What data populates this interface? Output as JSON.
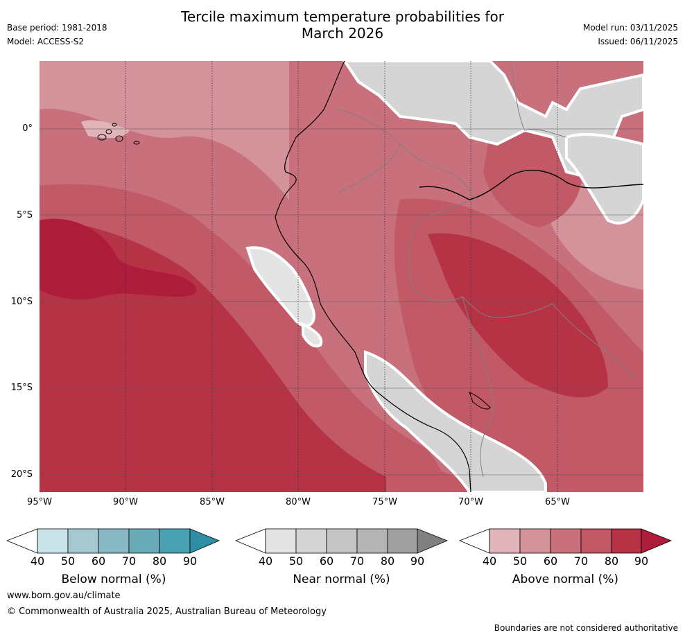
{
  "title": {
    "line1": "Tercile maximum temperature probabilities for",
    "line2": "March 2026"
  },
  "meta": {
    "base_period": "Base period: 1981-2018",
    "model": "Model: ACCESS-S2",
    "model_run": "Model run: 03/11/2025",
    "issued": "Issued: 06/11/2025"
  },
  "map": {
    "lat_labels": [
      "0°",
      "5°S",
      "10°S",
      "15°S",
      "20°S"
    ],
    "lon_labels": [
      "95°W",
      "90°W",
      "85°W",
      "80°W",
      "75°W",
      "70°W",
      "65°W"
    ]
  },
  "legends": [
    {
      "name": "Below normal (%)",
      "ticks": [
        "40",
        "50",
        "60",
        "70",
        "80",
        "90"
      ],
      "colors": [
        "#ffffff",
        "#c9e2e8",
        "#a6c9d1",
        "#88b8c4",
        "#6aabb8",
        "#4aa1b2",
        "#2f8ea4"
      ]
    },
    {
      "name": "Near normal (%)",
      "ticks": [
        "40",
        "50",
        "60",
        "70",
        "80",
        "90"
      ],
      "colors": [
        "#ffffff",
        "#e4e4e4",
        "#d5d5d5",
        "#c5c5c5",
        "#b4b4b4",
        "#a0a0a0",
        "#808080"
      ]
    },
    {
      "name": "Above normal (%)",
      "ticks": [
        "40",
        "50",
        "60",
        "70",
        "80",
        "90"
      ],
      "colors": [
        "#ffffff",
        "#e0b4b9",
        "#d4929b",
        "#c8707b",
        "#c15a66",
        "#b63346",
        "#ad1c3a"
      ]
    }
  ],
  "footer": {
    "url": "www.bom.gov.au/climate",
    "copyright": "© Commonwealth of Australia 2025, Australian Bureau of Meteorology",
    "disclaimer": "Boundaries are not considered authoritative"
  }
}
